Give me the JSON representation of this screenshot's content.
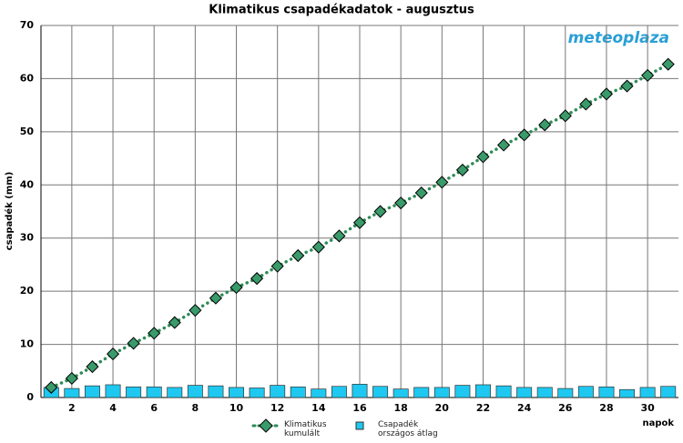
{
  "chart_data": {
    "type": "combo",
    "title": "Klimatikus csapadékadatok - augusztus",
    "ylabel": "csapadék (mm)",
    "xlabel": "napok",
    "logo": "meteoplaza",
    "x": [
      1,
      2,
      3,
      4,
      5,
      6,
      7,
      8,
      9,
      10,
      11,
      12,
      13,
      14,
      15,
      16,
      17,
      18,
      19,
      20,
      21,
      22,
      23,
      24,
      25,
      26,
      27,
      28,
      29,
      30,
      31
    ],
    "xlim": [
      0.5,
      31.5
    ],
    "xticks": [
      2,
      4,
      6,
      8,
      10,
      12,
      14,
      16,
      18,
      20,
      22,
      24,
      26,
      28,
      30
    ],
    "ylim": [
      0,
      70
    ],
    "yticks": [
      0,
      10,
      20,
      30,
      40,
      50,
      60,
      70
    ],
    "grid": true,
    "series": [
      {
        "name": "Csapadék országos átlag",
        "type": "bar",
        "color": "#1ec8f0",
        "values": [
          1.9,
          1.7,
          2.2,
          2.4,
          2.0,
          2.0,
          1.9,
          2.3,
          2.2,
          1.9,
          1.8,
          2.3,
          2.0,
          1.6,
          2.1,
          2.5,
          2.1,
          1.6,
          1.9,
          1.9,
          2.3,
          2.4,
          2.2,
          1.9,
          1.9,
          1.7,
          2.1,
          2.0,
          1.5,
          1.9,
          2.1
        ]
      },
      {
        "name": "Klimatikus kumulált",
        "type": "line",
        "color": "#2e8b57",
        "values": [
          1.9,
          3.6,
          5.8,
          8.2,
          10.2,
          12.1,
          14.1,
          16.4,
          18.7,
          20.7,
          22.4,
          24.7,
          26.7,
          28.3,
          30.4,
          32.9,
          35.0,
          36.6,
          38.5,
          40.5,
          42.8,
          45.3,
          47.5,
          49.4,
          51.3,
          53.0,
          55.2,
          57.1,
          58.6,
          60.6,
          62.7
        ]
      }
    ]
  }
}
